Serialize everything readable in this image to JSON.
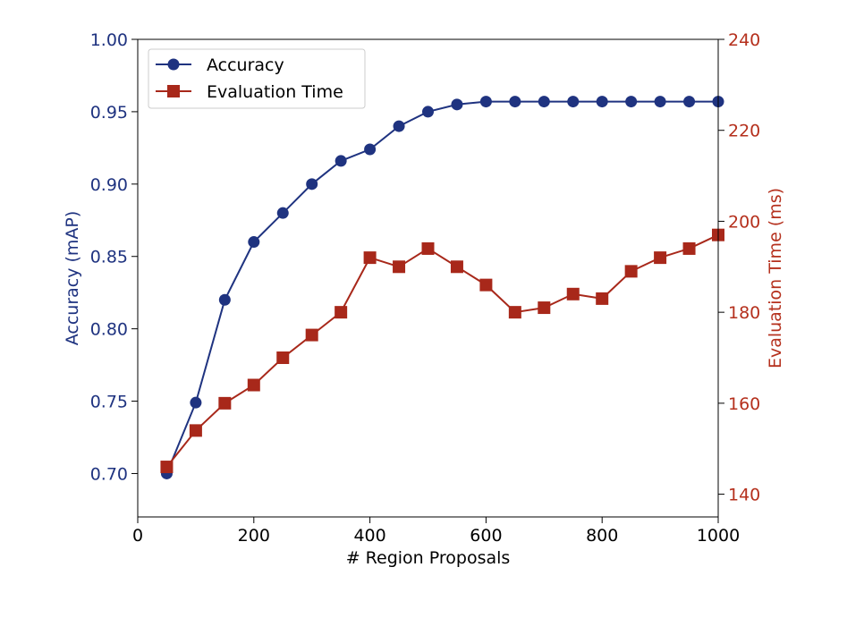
{
  "chart_data": {
    "type": "line",
    "xlabel": "# Region Proposals",
    "xlim": [
      0,
      1000
    ],
    "x_ticks": [
      0,
      200,
      400,
      600,
      800,
      1000
    ],
    "x": [
      50,
      100,
      150,
      200,
      250,
      300,
      350,
      400,
      450,
      500,
      550,
      600,
      650,
      700,
      750,
      800,
      850,
      900,
      950,
      1000
    ],
    "y_left": {
      "label": "Accuracy (mAP)",
      "lim": [
        0.67,
        1.0
      ],
      "ticks": [
        "0.70",
        "0.75",
        "0.80",
        "0.85",
        "0.90",
        "0.95",
        "1.00"
      ],
      "color": "#1f3380"
    },
    "y_right": {
      "label": "Evaluation Time (ms)",
      "lim": [
        135,
        240
      ],
      "ticks": [
        "140",
        "160",
        "180",
        "200",
        "220",
        "240"
      ],
      "color": "#b5301d"
    },
    "series": [
      {
        "name": "Accuracy",
        "axis": "left",
        "marker": "circle",
        "color": "#1f3380",
        "values": [
          0.7,
          0.749,
          0.82,
          0.86,
          0.88,
          0.9,
          0.916,
          0.924,
          0.94,
          0.95,
          0.955,
          0.957,
          0.957,
          0.957,
          0.957,
          0.957,
          0.957,
          0.957,
          0.957,
          0.957
        ]
      },
      {
        "name": "Evaluation Time",
        "axis": "right",
        "marker": "square",
        "color": "#a8281a",
        "values": [
          146,
          154,
          160,
          164,
          170,
          175,
          180,
          192,
          190,
          194,
          190,
          186,
          180,
          181,
          184,
          183,
          189,
          192,
          194,
          197
        ]
      }
    ],
    "legend": {
      "position": "top-left",
      "entries": [
        "Accuracy",
        "Evaluation Time"
      ]
    }
  }
}
